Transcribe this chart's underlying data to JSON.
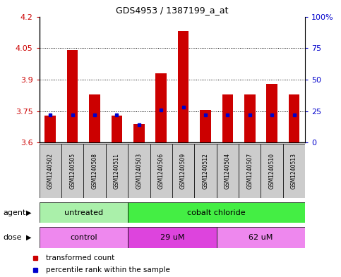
{
  "title": "GDS4953 / 1387199_a_at",
  "samples": [
    "GSM1240502",
    "GSM1240505",
    "GSM1240508",
    "GSM1240511",
    "GSM1240503",
    "GSM1240506",
    "GSM1240509",
    "GSM1240512",
    "GSM1240504",
    "GSM1240507",
    "GSM1240510",
    "GSM1240513"
  ],
  "transformed_counts": [
    3.73,
    4.04,
    3.83,
    3.73,
    3.69,
    3.93,
    4.13,
    3.755,
    3.83,
    3.83,
    3.88,
    3.83
  ],
  "percentile_ranks": [
    22,
    22,
    22,
    22,
    14,
    26,
    28,
    22,
    22,
    22,
    22,
    22
  ],
  "ylim": [
    3.6,
    4.2
  ],
  "yticks": [
    3.6,
    3.75,
    3.9,
    4.05,
    4.2
  ],
  "ytick_labels": [
    "3.6",
    "3.75",
    "3.9",
    "4.05",
    "4.2"
  ],
  "right_yticks": [
    0,
    25,
    50,
    75,
    100
  ],
  "right_ytick_labels": [
    "0",
    "25",
    "50",
    "75",
    "100%"
  ],
  "hlines": [
    3.75,
    3.9,
    4.05
  ],
  "bar_color": "#cc0000",
  "percentile_color": "#0000cc",
  "agent_groups": [
    {
      "label": "untreated",
      "start": 0,
      "end": 4,
      "color": "#aaf0aa"
    },
    {
      "label": "cobalt chloride",
      "start": 4,
      "end": 12,
      "color": "#44ee44"
    }
  ],
  "dose_groups": [
    {
      "label": "control",
      "start": 0,
      "end": 4,
      "color": "#ee88ee"
    },
    {
      "label": "29 uM",
      "start": 4,
      "end": 8,
      "color": "#dd44dd"
    },
    {
      "label": "62 uM",
      "start": 8,
      "end": 12,
      "color": "#ee88ee"
    }
  ],
  "ylabel_color": "#cc0000",
  "right_axis_color": "#0000cc",
  "legend_red_label": "transformed count",
  "legend_blue_label": "percentile rank within the sample",
  "bar_width": 0.5,
  "base_value": 3.6,
  "sample_box_color": "#cccccc",
  "plot_bg": "#ffffff"
}
